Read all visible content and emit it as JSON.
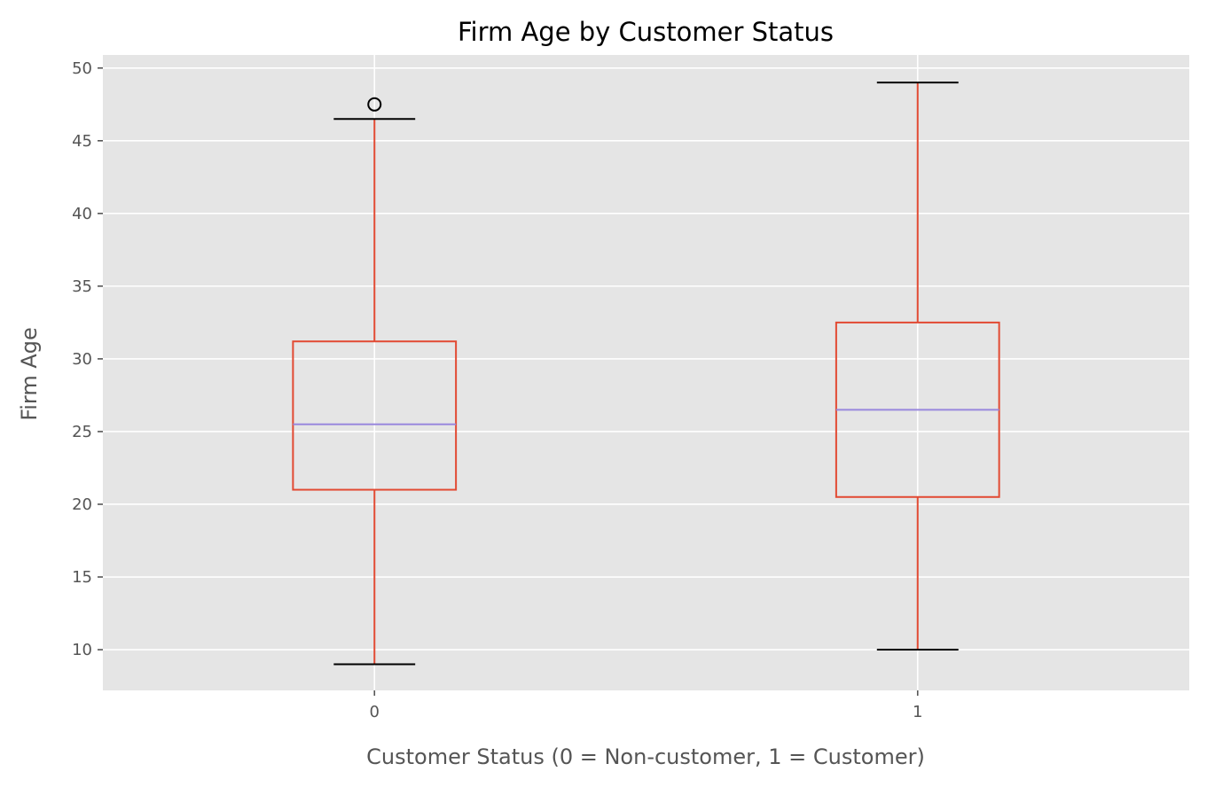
{
  "chart_data": {
    "type": "box",
    "title": "Firm Age by Customer Status",
    "xlabel": "Customer Status (0 = Non-customer, 1 = Customer)",
    "ylabel": "Firm Age",
    "categories": [
      "0",
      "1"
    ],
    "ylim": [
      7.2,
      50.9
    ],
    "yticks": [
      10,
      15,
      20,
      25,
      30,
      35,
      40,
      45,
      50
    ],
    "grid": true,
    "boxes": [
      {
        "category": "0",
        "whisker_low": 9,
        "q1": 21,
        "median": 25.5,
        "q3": 31.2,
        "whisker_high": 46.5,
        "outliers": [
          47.5
        ]
      },
      {
        "category": "1",
        "whisker_low": 10,
        "q1": 20.5,
        "median": 26.5,
        "q3": 32.5,
        "whisker_high": 49,
        "outliers": []
      }
    ],
    "colors": {
      "plot_background": "#E5E5E5",
      "grid": "#FFFFFF",
      "box": "#E24A33",
      "median": "#9988DD",
      "caps": "#000000",
      "outlier": "#000000"
    }
  }
}
